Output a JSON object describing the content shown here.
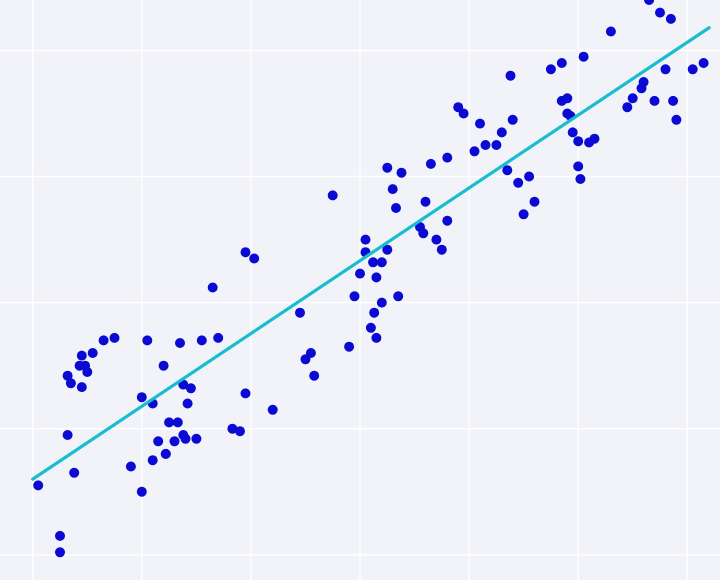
{
  "chart_data": {
    "type": "scatter",
    "title": "",
    "xlabel": "",
    "ylabel": "",
    "grid": true,
    "xlim": [
      -0.3,
      6.3
    ],
    "ylim": [
      -0.7,
      3.9
    ],
    "colors": {
      "background": "#f2f3f8",
      "grid": "#ffffff",
      "points": "#0a0ad2",
      "trendline": "#17becf"
    },
    "series": [
      {
        "kind": "points",
        "x": [
          0.05,
          0.25,
          0.25,
          0.32,
          0.38,
          0.32,
          0.35,
          0.43,
          0.45,
          0.45,
          0.48,
          0.5,
          0.55,
          0.65,
          0.75,
          0.9,
          1.0,
          1.0,
          1.05,
          1.1,
          1.1,
          1.15,
          1.2,
          1.22,
          1.22,
          1.25,
          1.3,
          1.33,
          1.35,
          1.38,
          1.38,
          1.4,
          1.42,
          1.45,
          1.5,
          1.55,
          1.65,
          1.7,
          1.83,
          1.9,
          1.95,
          1.95,
          2.03,
          2.2,
          2.45,
          2.5,
          2.55,
          2.58,
          2.75,
          2.9,
          2.95,
          3.0,
          3.05,
          3.05,
          3.1,
          3.12,
          3.13,
          3.15,
          3.15,
          3.2,
          3.2,
          3.25,
          3.25,
          3.3,
          3.33,
          3.35,
          3.38,
          3.55,
          3.58,
          3.6,
          3.65,
          3.7,
          3.75,
          3.8,
          3.8,
          3.9,
          3.95,
          4.05,
          4.1,
          4.15,
          4.25,
          4.3,
          4.35,
          4.38,
          4.4,
          4.45,
          4.5,
          4.55,
          4.6,
          4.75,
          4.85,
          4.85,
          4.9,
          4.9,
          4.93,
          4.95,
          5.0,
          5.0,
          5.02,
          5.05,
          5.1,
          5.15,
          5.3,
          5.45,
          5.5,
          5.58,
          5.6,
          5.65,
          5.7,
          5.75,
          5.8,
          5.85,
          5.87,
          5.9,
          6.05,
          6.15
        ],
        "y": [
          0.05,
          -0.35,
          -0.48,
          0.45,
          0.15,
          0.92,
          0.86,
          1.0,
          1.08,
          0.83,
          1.0,
          0.95,
          1.1,
          1.2,
          1.22,
          0.2,
          0.0,
          0.75,
          1.2,
          0.7,
          0.25,
          0.4,
          1.0,
          0.3,
          0.3,
          0.55,
          0.4,
          0.55,
          1.18,
          0.85,
          0.45,
          0.42,
          0.7,
          0.82,
          0.42,
          1.2,
          1.62,
          1.22,
          0.5,
          0.48,
          1.9,
          0.78,
          1.85,
          0.65,
          1.42,
          1.05,
          1.1,
          0.92,
          2.35,
          1.15,
          1.55,
          1.73,
          1.9,
          2.0,
          1.3,
          1.82,
          1.42,
          1.7,
          1.22,
          1.5,
          1.82,
          2.57,
          1.92,
          2.4,
          2.25,
          1.55,
          2.53,
          2.1,
          2.05,
          2.3,
          2.6,
          2.0,
          1.92,
          2.65,
          2.15,
          3.05,
          3.0,
          2.7,
          2.92,
          2.75,
          2.75,
          2.85,
          2.55,
          3.3,
          2.95,
          2.45,
          2.2,
          2.5,
          2.3,
          3.35,
          3.4,
          3.1,
          3.12,
          3.0,
          2.98,
          2.85,
          2.58,
          2.78,
          2.48,
          3.45,
          2.77,
          2.8,
          3.65,
          3.05,
          3.12,
          3.2,
          3.25,
          3.9,
          3.1,
          3.8,
          3.35,
          3.75,
          3.1,
          2.95,
          3.35,
          3.4
        ]
      },
      {
        "kind": "trendline",
        "x": [
          0.0,
          6.2
        ],
        "y": [
          0.1,
          3.68
        ]
      }
    ]
  }
}
